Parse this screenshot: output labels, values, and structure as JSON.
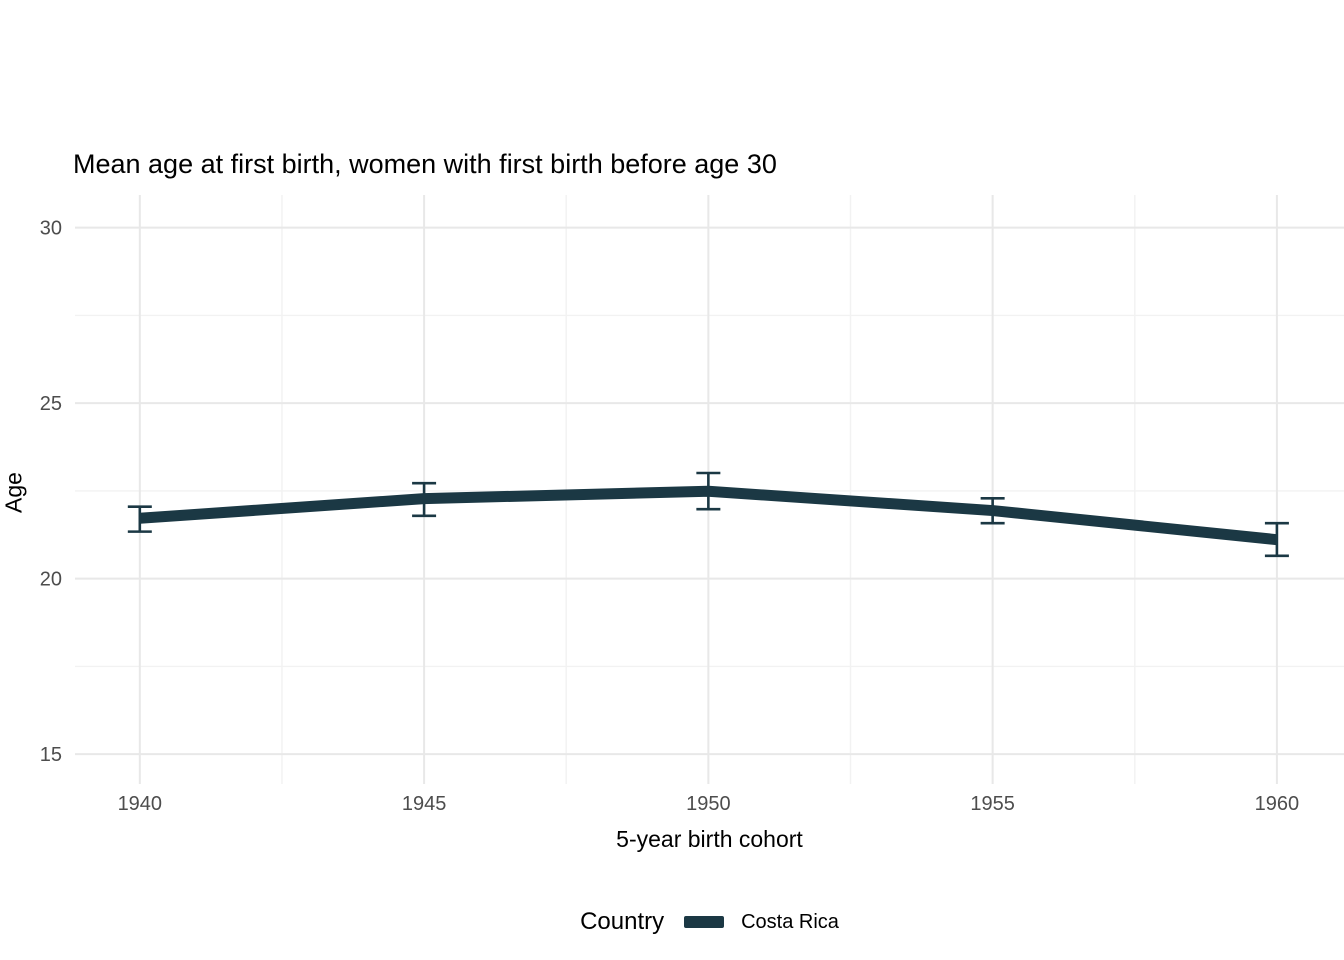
{
  "chart_data": {
    "type": "line",
    "title": "Mean age at first birth, women with first birth before age 30",
    "xlabel": "5-year birth cohort",
    "ylabel": "Age",
    "x": [
      1940,
      1945,
      1950,
      1955,
      1960
    ],
    "series": [
      {
        "name": "Costa Rica",
        "color": "#1b3844",
        "values": [
          21.72,
          22.28,
          22.49,
          21.94,
          21.11
        ],
        "ci_low": [
          21.34,
          21.79,
          21.98,
          21.58,
          20.65
        ],
        "ci_high": [
          22.05,
          22.72,
          23.01,
          22.29,
          21.58
        ]
      }
    ],
    "x_ticks_major": [
      1940,
      1945,
      1950,
      1955,
      1960
    ],
    "x_ticks_minor": [
      1942.5,
      1947.5,
      1952.5,
      1957.5
    ],
    "y_ticks_major": [
      15,
      20,
      25,
      30
    ],
    "y_ticks_minor": [
      17.5,
      22.5,
      27.5
    ],
    "xlim": [
      1938.86,
      1961.18
    ],
    "ylim": [
      14.15,
      30.93
    ],
    "grid": true,
    "legend_position": "bottom",
    "legend": {
      "title": "Country",
      "entries": [
        {
          "label": "Costa Rica",
          "color": "#1b3844"
        }
      ]
    }
  },
  "colors": {
    "accent": "#1b3844",
    "grid_major": "#e8e8e8",
    "grid_minor": "#f2f2f2",
    "tick_label": "#4d4d4d",
    "text": "#000000",
    "background": "#ffffff"
  }
}
